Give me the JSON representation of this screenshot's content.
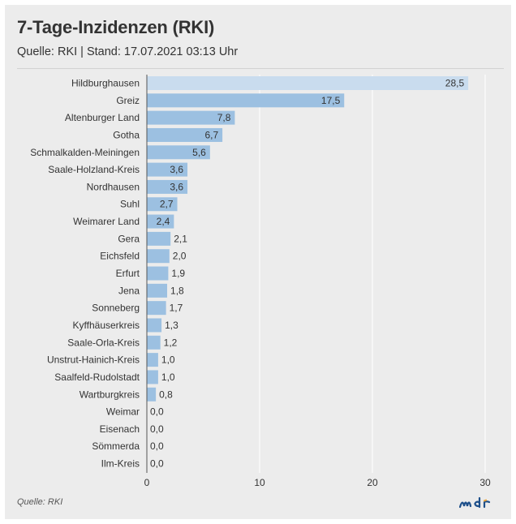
{
  "header": {
    "title": "7-Tage-Inzidenzen (RKI)",
    "subtitle": "Quelle: RKI | Stand: 17.07.2021 03:13 Uhr"
  },
  "footer": {
    "source": "Quelle: RKI",
    "logo_icon": "mdr-logo-icon"
  },
  "colors": {
    "bar": "#9cc0e1",
    "bar_highlight": "#c9dcee",
    "gridline": "#ffffff",
    "text": "#333333"
  },
  "chart_data": {
    "type": "bar",
    "orientation": "horizontal",
    "categories": [
      "Hildburghausen",
      "Greiz",
      "Altenburger Land",
      "Gotha",
      "Schmalkalden-Meiningen",
      "Saale-Holzland-Kreis",
      "Nordhausen",
      "Suhl",
      "Weimarer Land",
      "Gera",
      "Eichsfeld",
      "Erfurt",
      "Jena",
      "Sonneberg",
      "Kyffhäuserkreis",
      "Saale-Orla-Kreis",
      "Unstrut-Hainich-Kreis",
      "Saalfeld-Rudolstadt",
      "Wartburgkreis",
      "Weimar",
      "Eisenach",
      "Sömmerda",
      "Ilm-Kreis"
    ],
    "values": [
      28.5,
      17.5,
      7.8,
      6.7,
      5.6,
      3.6,
      3.6,
      2.7,
      2.4,
      2.1,
      2.0,
      1.9,
      1.8,
      1.7,
      1.3,
      1.2,
      1.0,
      1.0,
      0.8,
      0.0,
      0.0,
      0.0,
      0.0
    ],
    "value_labels": [
      "28,5",
      "17,5",
      "7,8",
      "6,7",
      "5,6",
      "3,6",
      "3,6",
      "2,7",
      "2,4",
      "2,1",
      "2,0",
      "1,9",
      "1,8",
      "1,7",
      "1,3",
      "1,2",
      "1,0",
      "1,0",
      "0,8",
      "0,0",
      "0,0",
      "0,0",
      "0,0"
    ],
    "xlim": [
      0,
      30
    ],
    "xticks": [
      0,
      10,
      20,
      30
    ],
    "xtick_labels": [
      "0",
      "10",
      "20",
      "30"
    ],
    "grid": true,
    "legend": "none"
  }
}
